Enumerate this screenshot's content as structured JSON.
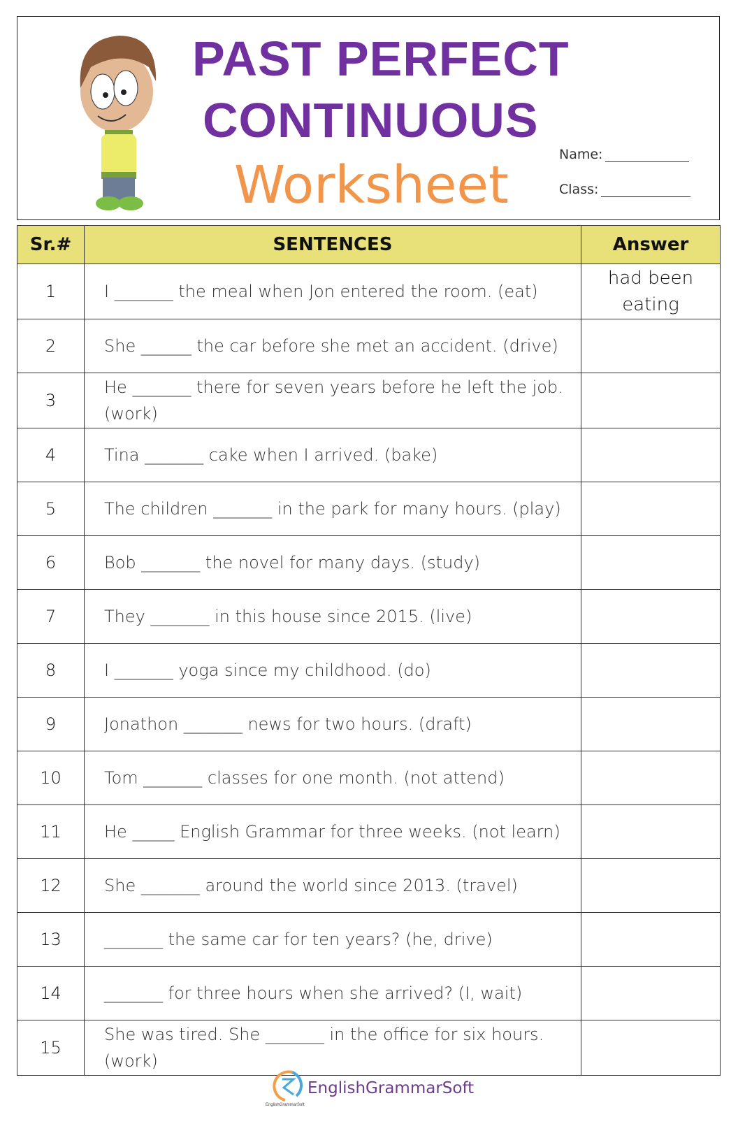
{
  "header": {
    "title_line1": "PAST PERFECT",
    "title_line2": "CONTINUOUS",
    "subtitle": "Worksheet",
    "name_label": "Name:",
    "class_label": "Class:",
    "colors": {
      "title": "#7030a0",
      "subtitle": "#f0954a"
    }
  },
  "table": {
    "headers": [
      "Sr.#",
      "SENTENCES",
      "Answer"
    ],
    "header_bg": "#e8e17a",
    "rows": [
      {
        "n": "1",
        "s": "I _______ the meal when Jon entered the room. (eat)",
        "a": "had been eating"
      },
      {
        "n": "2",
        "s": "She ______ the car before she met an accident. (drive)",
        "a": ""
      },
      {
        "n": "3",
        "s": "He _______ there for seven years before he left the job. (work)",
        "a": ""
      },
      {
        "n": "4",
        "s": "Tina _______ cake when I arrived. (bake)",
        "a": ""
      },
      {
        "n": "5",
        "s": "The children _______ in the park for many hours. (play)",
        "a": ""
      },
      {
        "n": "6",
        "s": "Bob _______ the novel for many days. (study)",
        "a": ""
      },
      {
        "n": "7",
        "s": "They _______ in this house since 2015. (live)",
        "a": ""
      },
      {
        "n": "8",
        "s": "I _______ yoga since my childhood. (do)",
        "a": ""
      },
      {
        "n": "9",
        "s": "Jonathon _______ news for two hours. (draft)",
        "a": ""
      },
      {
        "n": "10",
        "s": "Tom _______ classes for one month. (not attend)",
        "a": ""
      },
      {
        "n": "11",
        "s": "He _____ English Grammar for three weeks. (not learn)",
        "a": ""
      },
      {
        "n": "12",
        "s": "She _______ around the world since 2013. (travel)",
        "a": ""
      },
      {
        "n": "13",
        "s": "_______ the same car for ten years? (he, drive)",
        "a": ""
      },
      {
        "n": "14",
        "s": "_______ for three hours when she arrived? (I, wait)",
        "a": ""
      },
      {
        "n": "15",
        "s": "She was tired. She _______ in the office for six hours. (work)",
        "a": ""
      }
    ]
  },
  "footer": {
    "brand": "EnglishGrammarSoft",
    "logo_text": "EnglishGrammarSoft"
  }
}
